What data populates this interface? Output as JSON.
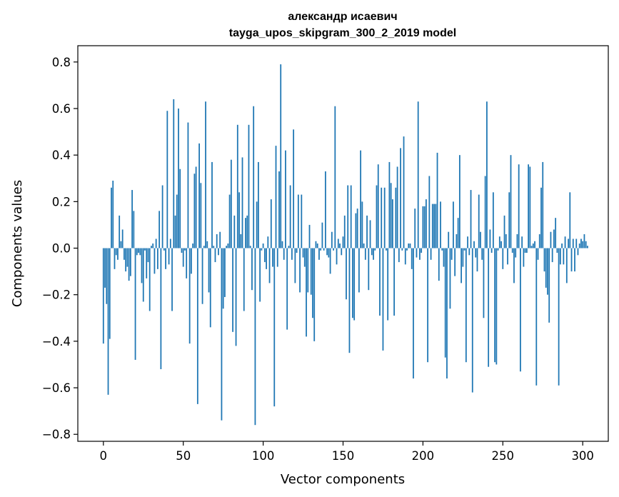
{
  "chart_data": {
    "type": "bar",
    "title_line1": "александр исаевич",
    "title_line2": "tayga_upos_skipgram_300_2_2019 model",
    "xlabel": "Vector components",
    "ylabel": "Components values",
    "xlim": [
      -16,
      316
    ],
    "ylim": [
      -0.83,
      0.87
    ],
    "x_ticks": [
      0,
      50,
      100,
      150,
      200,
      250,
      300
    ],
    "y_ticks": [
      -0.8,
      -0.6,
      -0.4,
      -0.2,
      0.0,
      0.2,
      0.4,
      0.6,
      0.8
    ],
    "y_tick_labels": [
      "−0.8",
      "−0.6",
      "−0.4",
      "−0.2",
      "0.0",
      "0.2",
      "0.4",
      "0.6",
      "0.8"
    ],
    "bar_color": "#1f77b4",
    "values": [
      -0.41,
      -0.17,
      -0.24,
      -0.63,
      -0.39,
      0.26,
      0.29,
      -0.09,
      -0.03,
      -0.05,
      0.14,
      0.03,
      0.08,
      -0.05,
      -0.1,
      -0.08,
      -0.14,
      -0.12,
      0.25,
      0.16,
      -0.48,
      -0.03,
      -0.02,
      -0.03,
      -0.15,
      -0.23,
      -0.01,
      -0.13,
      -0.06,
      -0.27,
      0.01,
      0.02,
      -0.11,
      0.04,
      -0.09,
      0.16,
      -0.52,
      0.27,
      -0.01,
      -0.09,
      0.59,
      -0.07,
      0.04,
      -0.27,
      0.64,
      0.14,
      0.23,
      0.6,
      0.34,
      -0.02,
      -0.08,
      -0.01,
      -0.13,
      0.54,
      -0.41,
      -0.11,
      0.02,
      0.32,
      0.35,
      -0.67,
      0.45,
      0.28,
      -0.24,
      0.01,
      0.63,
      0.03,
      -0.19,
      -0.34,
      0.37,
      0.01,
      -0.06,
      0.06,
      -0.03,
      0.07,
      -0.74,
      -0.26,
      -0.21,
      0.01,
      0.02,
      0.23,
      0.38,
      -0.36,
      0.14,
      -0.42,
      0.53,
      0.24,
      0.06,
      0.39,
      -0.27,
      0.13,
      0.14,
      0.53,
      0.01,
      -0.18,
      0.61,
      -0.76,
      0.2,
      0.37,
      -0.23,
      -0.01,
      0.02,
      -0.06,
      -0.09,
      0.05,
      -0.15,
      0.21,
      -0.08,
      -0.68,
      0.44,
      -0.08,
      0.33,
      0.79,
      0.03,
      -0.05,
      0.42,
      -0.35,
      0.01,
      0.27,
      -0.05,
      0.51,
      -0.15,
      -0.02,
      0.23,
      -0.19,
      0.23,
      -0.04,
      -0.08,
      -0.38,
      -0.19,
      0.1,
      -0.2,
      -0.3,
      -0.4,
      0.03,
      0.02,
      -0.05,
      -0.01,
      0.11,
      -0.01,
      0.33,
      -0.03,
      -0.04,
      -0.11,
      0.07,
      -0.01,
      0.61,
      -0.07,
      0.04,
      0.02,
      -0.03,
      0.05,
      0.14,
      -0.22,
      0.27,
      -0.45,
      0.27,
      -0.3,
      -0.31,
      0.15,
      0.17,
      -0.19,
      0.42,
      0.2,
      0.02,
      -0.05,
      0.14,
      -0.18,
      0.12,
      -0.03,
      -0.05,
      -0.01,
      0.27,
      0.36,
      -0.29,
      0.26,
      -0.44,
      0.26,
      -0.01,
      -0.31,
      0.37,
      0.28,
      0.21,
      -0.29,
      0.26,
      0.35,
      -0.06,
      0.43,
      -0.01,
      0.48,
      -0.07,
      -0.01,
      0.02,
      0.02,
      -0.09,
      -0.56,
      0.17,
      -0.04,
      0.63,
      -0.05,
      -0.02,
      0.18,
      0.18,
      0.21,
      -0.49,
      0.31,
      -0.05,
      0.19,
      0.19,
      0.19,
      0.41,
      -0.14,
      0.2,
      -0.01,
      -0.08,
      -0.47,
      -0.56,
      0.07,
      -0.26,
      -0.05,
      0.2,
      -0.12,
      0.06,
      0.13,
      0.4,
      -0.15,
      -0.08,
      -0.01,
      -0.49,
      0.05,
      -0.03,
      0.25,
      -0.62,
      0.03,
      -0.04,
      -0.1,
      0.23,
      0.07,
      -0.05,
      -0.3,
      0.31,
      0.63,
      -0.51,
      0.08,
      -0.02,
      0.24,
      -0.49,
      -0.5,
      -0.01,
      0.05,
      0.03,
      -0.09,
      0.14,
      0.06,
      -0.07,
      0.24,
      0.4,
      -0.02,
      -0.15,
      -0.04,
      0.06,
      0.36,
      -0.53,
      0.05,
      -0.08,
      -0.02,
      -0.02,
      0.36,
      0.35,
      0.01,
      0.02,
      0.03,
      -0.59,
      -0.05,
      0.06,
      0.26,
      0.37,
      -0.1,
      -0.17,
      -0.2,
      -0.32,
      0.07,
      -0.06,
      0.08,
      0.13,
      -0.02,
      -0.59,
      -0.07,
      0.02,
      -0.07,
      0.05,
      -0.15,
      0.04,
      0.24,
      -0.1,
      0.04,
      -0.1,
      0.04,
      -0.03,
      0.02,
      0.04,
      0.03,
      0.06,
      0.03,
      0.01
    ]
  }
}
